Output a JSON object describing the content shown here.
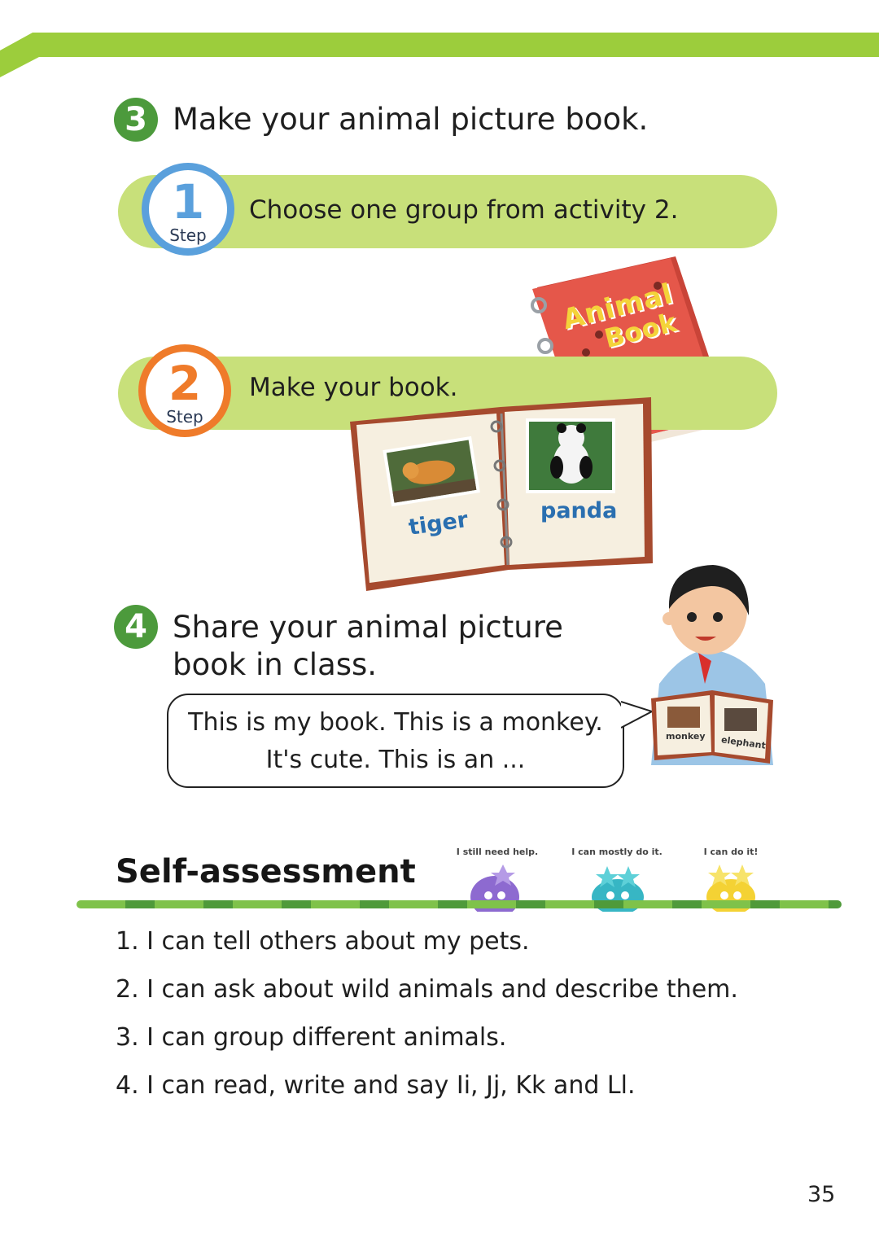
{
  "section3": {
    "number": "3",
    "title": "Make your animal picture book.",
    "steps": [
      {
        "num": "1",
        "word": "Step",
        "text": "Choose one group from activity 2."
      },
      {
        "num": "2",
        "word": "Step",
        "text": "Make your book."
      }
    ],
    "book_cover": {
      "title_line1": "Animal",
      "title_line2": "Book"
    },
    "book_pages": {
      "left_label": "tiger",
      "right_label": "panda"
    }
  },
  "section4": {
    "number": "4",
    "title_line1": "Share your animal picture",
    "title_line2": "book in class.",
    "bubble_line1": "This is my book. This is a monkey.",
    "bubble_line2": "It's cute. This is an ...",
    "boy_book": {
      "left_label": "monkey",
      "right_label": "elephant"
    }
  },
  "self_assessment": {
    "title": "Self-assessment",
    "ratings": [
      "I still need help.",
      "I can mostly do it.",
      "I can do it!"
    ],
    "items": [
      "1. I can tell others about my pets.",
      "2. I can ask about wild animals and describe them.",
      "3. I can group different animals.",
      "4. I can read, write and say Ii, Jj, Kk and Ll."
    ]
  },
  "page_number": "35",
  "colors": {
    "green_band": "#9ccd3c",
    "light_green": "#c8e07a",
    "badge_green": "#4c9a3c",
    "step1_blue": "#5aa0dc",
    "step2_orange": "#ef7b2a",
    "cover_red": "#e5574a"
  }
}
